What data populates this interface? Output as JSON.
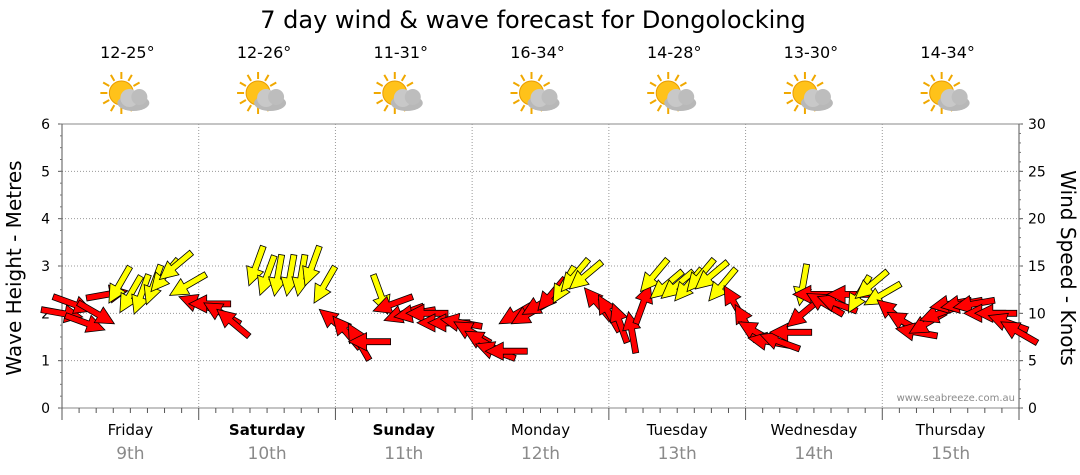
{
  "chart_data": {
    "type": "scatter",
    "title": "7 day wind & wave forecast for Dongolocking",
    "ylabel_left": "Wave Height - Metres",
    "ylabel_right": "Wind Speed - Knots",
    "ylim_left": [
      0,
      6
    ],
    "ylim_right": [
      0,
      30
    ],
    "yticks_left": [
      "0",
      "1",
      "2",
      "3",
      "4",
      "5",
      "6"
    ],
    "yticks_right": [
      "0",
      "5",
      "10",
      "15",
      "20",
      "25",
      "30"
    ],
    "watermark": "www.seabreeze.com.au",
    "colors": {
      "onshore": "#ff0000",
      "offshore": "#ffff00",
      "outline": "#000000"
    },
    "days": [
      {
        "name": "Friday",
        "date": "9th",
        "temp": "12-25°",
        "bold": false,
        "icon": "sun-cloud-icon"
      },
      {
        "name": "Saturday",
        "date": "10th",
        "temp": "12-26°",
        "bold": true,
        "icon": "sun-cloud-icon"
      },
      {
        "name": "Sunday",
        "date": "11th",
        "temp": "11-31°",
        "bold": true,
        "icon": "sun-cloud-icon"
      },
      {
        "name": "Monday",
        "date": "12th",
        "temp": "16-34°",
        "bold": false,
        "icon": "sun-cloud-icon"
      },
      {
        "name": "Tuesday",
        "date": "13th",
        "temp": "14-28°",
        "bold": false,
        "icon": "sun-cloud-icon"
      },
      {
        "name": "Wednesday",
        "date": "14th",
        "temp": "13-30°",
        "bold": false,
        "icon": "sun-cloud-icon"
      },
      {
        "name": "Thursday",
        "date": "15th",
        "temp": "14-34°",
        "bold": false,
        "icon": "sun-cloud-icon"
      }
    ],
    "wind_series": [
      {
        "t": 0.0,
        "k": 10,
        "c": "red",
        "dir": 100
      },
      {
        "t": 0.08,
        "k": 11,
        "c": "red",
        "dir": 110
      },
      {
        "t": 0.17,
        "k": 9,
        "c": "red",
        "dir": 110
      },
      {
        "t": 0.25,
        "k": 10,
        "c": "red",
        "dir": 120
      },
      {
        "t": 0.33,
        "k": 12,
        "c": "red",
        "dir": 80
      },
      {
        "t": 0.42,
        "k": 13,
        "c": "yellow",
        "dir": 210
      },
      {
        "t": 0.5,
        "k": 12,
        "c": "yellow",
        "dir": 210
      },
      {
        "t": 0.58,
        "k": 12,
        "c": "yellow",
        "dir": 200
      },
      {
        "t": 0.67,
        "k": 13,
        "c": "yellow",
        "dir": 200
      },
      {
        "t": 0.75,
        "k": 14,
        "c": "yellow",
        "dir": 220
      },
      {
        "t": 0.83,
        "k": 15,
        "c": "yellow",
        "dir": 230
      },
      {
        "t": 0.92,
        "k": 13,
        "c": "yellow",
        "dir": 240
      },
      {
        "t": 1.0,
        "k": 11,
        "c": "red",
        "dir": 290
      },
      {
        "t": 1.08,
        "k": 11,
        "c": "red",
        "dir": 270
      },
      {
        "t": 1.17,
        "k": 10,
        "c": "red",
        "dir": 300
      },
      {
        "t": 1.25,
        "k": 9,
        "c": "red",
        "dir": 310
      },
      {
        "t": 1.42,
        "k": 15,
        "c": "yellow",
        "dir": 200
      },
      {
        "t": 1.5,
        "k": 14,
        "c": "yellow",
        "dir": 200
      },
      {
        "t": 1.58,
        "k": 14,
        "c": "yellow",
        "dir": 190
      },
      {
        "t": 1.67,
        "k": 14,
        "c": "yellow",
        "dir": 190
      },
      {
        "t": 1.75,
        "k": 14,
        "c": "yellow",
        "dir": 190
      },
      {
        "t": 1.83,
        "k": 15,
        "c": "yellow",
        "dir": 200
      },
      {
        "t": 1.92,
        "k": 13,
        "c": "yellow",
        "dir": 210
      },
      {
        "t": 2.0,
        "k": 9,
        "c": "red",
        "dir": 310
      },
      {
        "t": 2.08,
        "k": 8,
        "c": "red",
        "dir": 320
      },
      {
        "t": 2.17,
        "k": 7,
        "c": "red",
        "dir": 330
      },
      {
        "t": 2.25,
        "k": 7,
        "c": "red",
        "dir": 270
      },
      {
        "t": 2.33,
        "k": 12,
        "c": "yellow",
        "dir": 160
      },
      {
        "t": 2.42,
        "k": 11,
        "c": "red",
        "dir": 250
      },
      {
        "t": 2.5,
        "k": 10,
        "c": "red",
        "dir": 250
      },
      {
        "t": 2.58,
        "k": 10,
        "c": "red",
        "dir": 260
      },
      {
        "t": 2.67,
        "k": 10,
        "c": "red",
        "dir": 270
      },
      {
        "t": 2.75,
        "k": 9,
        "c": "red",
        "dir": 270
      },
      {
        "t": 2.83,
        "k": 9,
        "c": "red",
        "dir": 270
      },
      {
        "t": 2.92,
        "k": 9,
        "c": "red",
        "dir": 280
      },
      {
        "t": 3.0,
        "k": 8,
        "c": "red",
        "dir": 300
      },
      {
        "t": 3.08,
        "k": 7,
        "c": "red",
        "dir": 300
      },
      {
        "t": 3.17,
        "k": 6,
        "c": "red",
        "dir": 290
      },
      {
        "t": 3.25,
        "k": 6,
        "c": "red",
        "dir": 270
      },
      {
        "t": 3.33,
        "k": 10,
        "c": "red",
        "dir": 240
      },
      {
        "t": 3.42,
        "k": 10,
        "c": "red",
        "dir": 240
      },
      {
        "t": 3.5,
        "k": 11,
        "c": "red",
        "dir": 240
      },
      {
        "t": 3.58,
        "k": 12,
        "c": "red",
        "dir": 220
      },
      {
        "t": 3.67,
        "k": 13,
        "c": "yellow",
        "dir": 210
      },
      {
        "t": 3.75,
        "k": 14,
        "c": "yellow",
        "dir": 220
      },
      {
        "t": 3.83,
        "k": 14,
        "c": "yellow",
        "dir": 230
      },
      {
        "t": 3.92,
        "k": 11,
        "c": "red",
        "dir": 320
      },
      {
        "t": 4.0,
        "k": 10,
        "c": "red",
        "dir": 330
      },
      {
        "t": 4.08,
        "k": 9,
        "c": "red",
        "dir": 340
      },
      {
        "t": 4.17,
        "k": 8,
        "c": "red",
        "dir": 350
      },
      {
        "t": 4.25,
        "k": 11,
        "c": "red",
        "dir": 20
      },
      {
        "t": 4.33,
        "k": 14,
        "c": "yellow",
        "dir": 220
      },
      {
        "t": 4.42,
        "k": 13,
        "c": "yellow",
        "dir": 230
      },
      {
        "t": 4.5,
        "k": 13,
        "c": "yellow",
        "dir": 230
      },
      {
        "t": 4.58,
        "k": 13,
        "c": "yellow",
        "dir": 220
      },
      {
        "t": 4.67,
        "k": 14,
        "c": "yellow",
        "dir": 220
      },
      {
        "t": 4.75,
        "k": 14,
        "c": "yellow",
        "dir": 230
      },
      {
        "t": 4.83,
        "k": 13,
        "c": "yellow",
        "dir": 220
      },
      {
        "t": 4.92,
        "k": 11,
        "c": "red",
        "dir": 330
      },
      {
        "t": 5.0,
        "k": 9,
        "c": "red",
        "dir": 330
      },
      {
        "t": 5.08,
        "k": 8,
        "c": "red",
        "dir": 300
      },
      {
        "t": 5.17,
        "k": 7,
        "c": "red",
        "dir": 280
      },
      {
        "t": 5.25,
        "k": 7,
        "c": "red",
        "dir": 290
      },
      {
        "t": 5.33,
        "k": 8,
        "c": "red",
        "dir": 270
      },
      {
        "t": 5.42,
        "k": 10,
        "c": "red",
        "dir": 230
      },
      {
        "t": 5.42,
        "k": 13,
        "c": "yellow",
        "dir": 190
      },
      {
        "t": 5.5,
        "k": 12,
        "c": "red",
        "dir": 270
      },
      {
        "t": 5.58,
        "k": 11,
        "c": "red",
        "dir": 300
      },
      {
        "t": 5.67,
        "k": 11,
        "c": "red",
        "dir": 290
      },
      {
        "t": 5.75,
        "k": 12,
        "c": "red",
        "dir": 270
      },
      {
        "t": 5.83,
        "k": 12,
        "c": "yellow",
        "dir": 210
      },
      {
        "t": 5.92,
        "k": 13,
        "c": "yellow",
        "dir": 230
      },
      {
        "t": 6.0,
        "k": 12,
        "c": "yellow",
        "dir": 240
      },
      {
        "t": 6.08,
        "k": 10,
        "c": "red",
        "dir": 310
      },
      {
        "t": 6.17,
        "k": 9,
        "c": "red",
        "dir": 300
      },
      {
        "t": 6.25,
        "k": 8,
        "c": "red",
        "dir": 280
      },
      {
        "t": 6.33,
        "k": 9,
        "c": "red",
        "dir": 240
      },
      {
        "t": 6.42,
        "k": 10,
        "c": "red",
        "dir": 250
      },
      {
        "t": 6.5,
        "k": 11,
        "c": "red",
        "dir": 260
      },
      {
        "t": 6.58,
        "k": 11,
        "c": "red",
        "dir": 260
      },
      {
        "t": 6.67,
        "k": 11,
        "c": "red",
        "dir": 260
      },
      {
        "t": 6.75,
        "k": 10,
        "c": "red",
        "dir": 270
      },
      {
        "t": 6.83,
        "k": 10,
        "c": "red",
        "dir": 270
      },
      {
        "t": 6.92,
        "k": 9,
        "c": "red",
        "dir": 290
      },
      {
        "t": 7.0,
        "k": 8,
        "c": "red",
        "dir": 300
      }
    ]
  }
}
